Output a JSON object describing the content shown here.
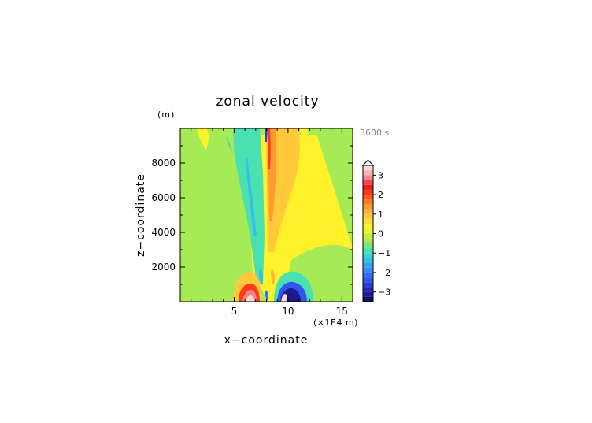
{
  "chart_data": {
    "type": "heatmap",
    "title": "zonal velocity",
    "xlabel": "x−coordinate",
    "ylabel": "z−coordinate",
    "x_unit": "(×1E4 m)",
    "y_unit": "(m)",
    "time_label": "3600 s",
    "xlim": [
      0,
      16
    ],
    "ylim": [
      0,
      10000
    ],
    "x_ticks": [
      5,
      10,
      15
    ],
    "y_ticks": [
      2000,
      4000,
      6000,
      8000
    ],
    "colorbar": {
      "levels": [
        -3.5,
        -3.25,
        -3,
        -2.75,
        -2.5,
        -2.25,
        -2,
        -1.75,
        -1.5,
        -1.25,
        -1,
        -0.75,
        -0.5,
        -0.25,
        0,
        0.25,
        0.5,
        0.75,
        1,
        1.25,
        1.5,
        1.75,
        2,
        2.25,
        2.5,
        2.75,
        3,
        3.25,
        3.5
      ],
      "tick_values": [
        3,
        2,
        1,
        0,
        -1,
        -2,
        -3
      ],
      "tick_labels": [
        "3",
        "2",
        "1",
        "0",
        "−1",
        "−2",
        "−3"
      ],
      "colors": [
        "#0a0a5e",
        "#1a1a8c",
        "#2323b4",
        "#2a3cd6",
        "#3355ee",
        "#2f6ef7",
        "#3a8cf5",
        "#32a6f0",
        "#35bfe8",
        "#3ad6cf",
        "#4ae0b0",
        "#78e78a",
        "#a6ea55",
        "#c8ec3a",
        "#ebf72e",
        "#fff22a",
        "#ffe036",
        "#ffc93a",
        "#ffb53a",
        "#ff9a30",
        "#ff7a2a",
        "#ff5a22",
        "#ff3a1a",
        "#ee1c1c",
        "#f34a52",
        "#f8848a",
        "#fbb2b4",
        "#fdd8d8"
      ]
    },
    "grid": false,
    "legend": "colorbar-right"
  }
}
